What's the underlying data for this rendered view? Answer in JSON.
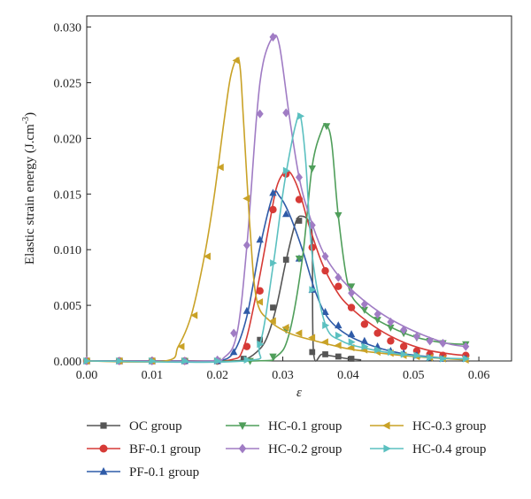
{
  "chart_data": {
    "type": "line",
    "xlabel": "ε",
    "ylabel": "Elastic strain energy (J.cm",
    "ylabel_sup": "-3",
    "ylabel_end": ")",
    "xlim": [
      0.0,
      0.065
    ],
    "ylim": [
      0.0,
      0.031
    ],
    "xticks": [
      "0.00",
      "0.01",
      "0.02",
      "0.03",
      "0.04",
      "0.05",
      "0.06"
    ],
    "yticks": [
      "0.000",
      "0.005",
      "0.010",
      "0.015",
      "0.020",
      "0.025",
      "0.030"
    ],
    "legend_placement": "bottom",
    "series": [
      {
        "name": "OC group",
        "color": "#555555",
        "marker": "square",
        "x": [
          0.0,
          0.003,
          0.006,
          0.009,
          0.012,
          0.015,
          0.018,
          0.021,
          0.024,
          0.026,
          0.0275,
          0.029,
          0.0305,
          0.032,
          0.033,
          0.034,
          0.0345,
          0.0347,
          0.036,
          0.038,
          0.04,
          0.042
        ],
        "y": [
          0.0,
          0.0,
          0.0,
          0.0,
          0.0,
          0.0,
          0.0,
          0.0,
          0.0001,
          0.0008,
          0.002,
          0.0048,
          0.009,
          0.0125,
          0.013,
          0.0125,
          0.011,
          0.0008,
          0.0006,
          0.0004,
          0.0002,
          0.0001
        ],
        "marker_x": [
          0.0,
          0.005,
          0.01,
          0.015,
          0.02,
          0.024,
          0.0265,
          0.0285,
          0.0305,
          0.0325,
          0.0345,
          0.0365,
          0.0385,
          0.0405
        ],
        "marker_y": [
          0.0,
          0.0,
          0.0,
          0.0,
          0.0,
          0.0002,
          0.0019,
          0.0048,
          0.0091,
          0.0126,
          0.0008,
          0.0006,
          0.0004,
          0.0002
        ]
      },
      {
        "name": "BF-0.1 group",
        "color": "#d63a36",
        "marker": "circle",
        "x": [
          0.0,
          0.015,
          0.022,
          0.024,
          0.026,
          0.028,
          0.029,
          0.03,
          0.031,
          0.032,
          0.033,
          0.034,
          0.036,
          0.038,
          0.04,
          0.044,
          0.048,
          0.052,
          0.056,
          0.058
        ],
        "y": [
          0.0,
          0.0,
          0.0001,
          0.0012,
          0.0062,
          0.0125,
          0.0155,
          0.0168,
          0.017,
          0.016,
          0.0143,
          0.0122,
          0.0088,
          0.0065,
          0.005,
          0.0031,
          0.0018,
          0.001,
          0.0006,
          0.0005
        ],
        "marker_x": [
          0.0,
          0.005,
          0.01,
          0.015,
          0.02,
          0.0245,
          0.0265,
          0.0285,
          0.0305,
          0.0325,
          0.0345,
          0.0365,
          0.0385,
          0.0405,
          0.0425,
          0.0445,
          0.0465,
          0.0485,
          0.0505,
          0.0525,
          0.0545,
          0.058
        ],
        "marker_y": [
          0.0,
          0.0,
          0.0,
          0.0,
          0.0,
          0.0013,
          0.0063,
          0.0136,
          0.0168,
          0.0145,
          0.0102,
          0.0081,
          0.0067,
          0.0048,
          0.0033,
          0.0025,
          0.0018,
          0.0013,
          0.0009,
          0.0006,
          0.0005,
          0.0005
        ]
      },
      {
        "name": "PF-0.1 group",
        "color": "#2f5ba8",
        "marker": "triangle-up",
        "x": [
          0.0,
          0.015,
          0.02,
          0.0225,
          0.0245,
          0.0265,
          0.0285,
          0.0295,
          0.031,
          0.033,
          0.035,
          0.037,
          0.04,
          0.044,
          0.048,
          0.052,
          0.056,
          0.058
        ],
        "y": [
          0.0,
          0.0,
          0.0,
          0.0008,
          0.004,
          0.0102,
          0.0149,
          0.0148,
          0.0132,
          0.01,
          0.0062,
          0.0038,
          0.0023,
          0.0013,
          0.0007,
          0.0004,
          0.0002,
          0.0002
        ],
        "marker_x": [
          0.0,
          0.005,
          0.01,
          0.015,
          0.02,
          0.0225,
          0.0245,
          0.0265,
          0.0285,
          0.0305,
          0.0325,
          0.0345,
          0.0365,
          0.0385,
          0.0405,
          0.0425,
          0.0445,
          0.0465,
          0.0485,
          0.0505,
          0.0525,
          0.0545,
          0.058
        ],
        "marker_y": [
          0.0,
          0.0,
          0.0,
          0.0,
          0.0,
          0.0008,
          0.0045,
          0.0109,
          0.0151,
          0.0132,
          0.0092,
          0.0064,
          0.0044,
          0.0032,
          0.0024,
          0.0018,
          0.0013,
          0.0009,
          0.0007,
          0.0005,
          0.0003,
          0.0002,
          0.0002
        ]
      },
      {
        "name": "HC-0.1 group",
        "color": "#4f9e5a",
        "marker": "triangle-down",
        "x": [
          0.0,
          0.025,
          0.029,
          0.031,
          0.033,
          0.0345,
          0.036,
          0.0367,
          0.0375,
          0.0385,
          0.04,
          0.042,
          0.045,
          0.05,
          0.055,
          0.058
        ],
        "y": [
          0.0,
          0.0,
          0.0004,
          0.0025,
          0.0092,
          0.0175,
          0.0208,
          0.0212,
          0.0195,
          0.013,
          0.0068,
          0.0048,
          0.0035,
          0.0022,
          0.0016,
          0.0015
        ],
        "marker_x": [
          0.0,
          0.005,
          0.01,
          0.015,
          0.02,
          0.025,
          0.0285,
          0.0305,
          0.0325,
          0.0345,
          0.0367,
          0.0385,
          0.0405,
          0.0425,
          0.0445,
          0.0465,
          0.0485,
          0.0505,
          0.0525,
          0.0545,
          0.058
        ],
        "marker_y": [
          0.0,
          0.0,
          0.0,
          0.0,
          0.0,
          0.0,
          0.0004,
          0.0028,
          0.0092,
          0.0173,
          0.0211,
          0.0131,
          0.0067,
          0.0046,
          0.0037,
          0.003,
          0.0025,
          0.0021,
          0.0018,
          0.0016,
          0.0015
        ]
      },
      {
        "name": "HC-0.2 group",
        "color": "#a07cc4",
        "marker": "diamond",
        "x": [
          0.0,
          0.018,
          0.021,
          0.023,
          0.0245,
          0.026,
          0.027,
          0.0285,
          0.0295,
          0.031,
          0.0325,
          0.034,
          0.0365,
          0.04,
          0.045,
          0.05,
          0.055,
          0.058
        ],
        "y": [
          0.0,
          0.0,
          0.0003,
          0.0025,
          0.0103,
          0.022,
          0.0268,
          0.0291,
          0.0283,
          0.022,
          0.0165,
          0.0132,
          0.0094,
          0.0067,
          0.0043,
          0.0027,
          0.0016,
          0.0013
        ],
        "marker_x": [
          0.0,
          0.005,
          0.01,
          0.015,
          0.02,
          0.0225,
          0.0245,
          0.0265,
          0.0285,
          0.0305,
          0.0325,
          0.0345,
          0.0365,
          0.0385,
          0.0405,
          0.0425,
          0.0445,
          0.0465,
          0.0485,
          0.0505,
          0.0525,
          0.0545,
          0.058
        ],
        "marker_y": [
          0.0,
          0.0,
          0.0,
          0.0,
          0.0001,
          0.0025,
          0.0104,
          0.0222,
          0.0291,
          0.0223,
          0.0165,
          0.0122,
          0.0094,
          0.0075,
          0.0061,
          0.0051,
          0.0042,
          0.0035,
          0.0028,
          0.0022,
          0.0018,
          0.0016,
          0.0013
        ]
      },
      {
        "name": "HC-0.3 group",
        "color": "#c9a227",
        "marker": "triangle-left",
        "x": [
          0.0,
          0.012,
          0.014,
          0.016,
          0.018,
          0.0195,
          0.021,
          0.022,
          0.023,
          0.0235,
          0.024,
          0.025,
          0.026,
          0.028,
          0.031,
          0.035,
          0.04,
          0.045,
          0.05,
          0.055,
          0.058
        ],
        "y": [
          0.0,
          0.0,
          0.0013,
          0.0041,
          0.0094,
          0.0148,
          0.0215,
          0.0255,
          0.0272,
          0.0262,
          0.0215,
          0.0118,
          0.0055,
          0.0036,
          0.0025,
          0.0018,
          0.0011,
          0.0007,
          0.0004,
          0.0002,
          0.0001
        ],
        "marker_x": [
          0.0,
          0.005,
          0.01,
          0.0145,
          0.0165,
          0.0185,
          0.0205,
          0.0229,
          0.0245,
          0.0265,
          0.0285,
          0.0305,
          0.0325,
          0.0345,
          0.0365,
          0.0385,
          0.0405,
          0.0425,
          0.0445,
          0.0465,
          0.0485,
          0.0505,
          0.0525,
          0.0545,
          0.058
        ],
        "marker_y": [
          0.0,
          0.0,
          0.0,
          0.0013,
          0.0041,
          0.0094,
          0.0174,
          0.027,
          0.0146,
          0.0053,
          0.0036,
          0.003,
          0.0025,
          0.0021,
          0.0017,
          0.0014,
          0.0012,
          0.001,
          0.0008,
          0.0007,
          0.0005,
          0.0004,
          0.0003,
          0.0002,
          0.0001
        ]
      },
      {
        "name": "HC-0.4 group",
        "color": "#5bc0c0",
        "marker": "triangle-right",
        "x": [
          0.0,
          0.024,
          0.0265,
          0.0285,
          0.03,
          0.031,
          0.032,
          0.0327,
          0.0335,
          0.0345,
          0.0365,
          0.039,
          0.043,
          0.048,
          0.053,
          0.058
        ],
        "y": [
          0.0,
          0.0,
          0.0015,
          0.0085,
          0.015,
          0.0185,
          0.0213,
          0.022,
          0.018,
          0.0095,
          0.0033,
          0.0018,
          0.0011,
          0.0006,
          0.0003,
          0.0002
        ],
        "marker_x": [
          0.0,
          0.005,
          0.01,
          0.015,
          0.02,
          0.0245,
          0.0265,
          0.0285,
          0.0305,
          0.0327,
          0.0345,
          0.0365,
          0.0385,
          0.0405,
          0.0425,
          0.0445,
          0.0465,
          0.0485,
          0.0505,
          0.0525,
          0.0545,
          0.058
        ],
        "marker_y": [
          0.0,
          0.0,
          0.0,
          0.0,
          0.0,
          0.0001,
          0.0015,
          0.0088,
          0.0171,
          0.022,
          0.0064,
          0.0032,
          0.0023,
          0.0017,
          0.0013,
          0.001,
          0.0008,
          0.0006,
          0.0005,
          0.0003,
          0.0002,
          0.0002
        ]
      }
    ]
  }
}
